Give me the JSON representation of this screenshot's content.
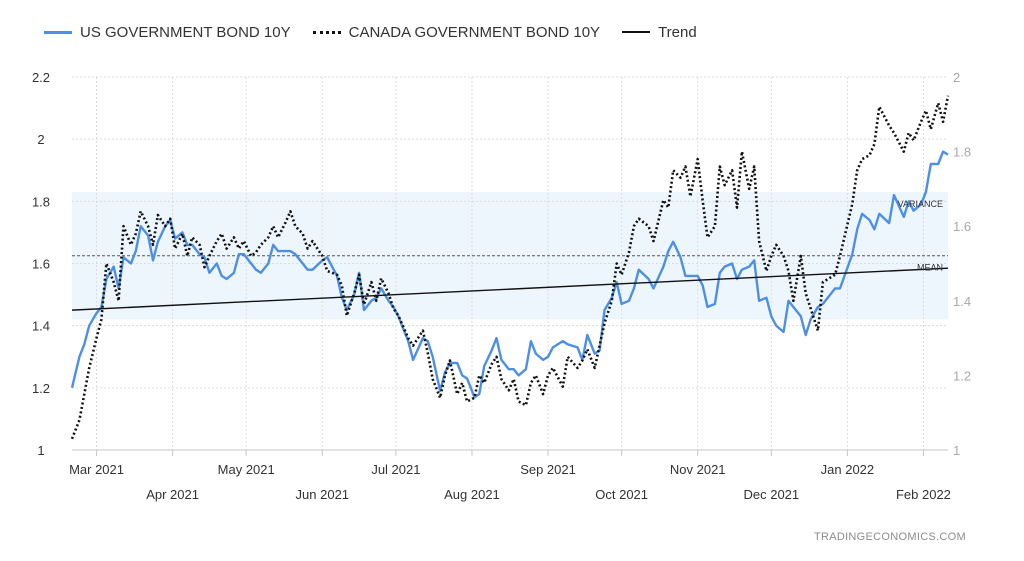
{
  "legend": {
    "us_label": "US GOVERNMENT BOND 10Y",
    "canada_label": "CANADA GOVERNMENT BOND 10Y",
    "trend_label": "Trend"
  },
  "watermark": "TRADINGECONOMICS.COM",
  "colors": {
    "us": "#4e8fe6",
    "canada": "#111111",
    "trend": "#111111",
    "band": "#eef6fd"
  },
  "chart_data": {
    "type": "line",
    "title": "",
    "xlabel": "",
    "ylabel": "",
    "x_range": [
      "2021-02-19",
      "2022-02-11"
    ],
    "y_left_lim": [
      1,
      2.2
    ],
    "y_left_ticks": [
      "1",
      "1.2",
      "1.4",
      "1.6",
      "1.8",
      "2",
      "2.2"
    ],
    "y_right_lim": [
      1,
      2
    ],
    "y_right_ticks": [
      "1",
      "1.2",
      "1.4",
      "1.6",
      "1.8",
      "2"
    ],
    "x_ticks_upper": [
      {
        "date": "2021-03-01",
        "label": "Mar 2021"
      },
      {
        "date": "2021-05-01",
        "label": "May 2021"
      },
      {
        "date": "2021-07-01",
        "label": "Jul 2021"
      },
      {
        "date": "2021-09-01",
        "label": "Sep 2021"
      },
      {
        "date": "2021-11-01",
        "label": "Nov 2021"
      },
      {
        "date": "2022-01-01",
        "label": "Jan 2022"
      }
    ],
    "x_ticks_lower": [
      {
        "date": "2021-04-01",
        "label": "Apr 2021"
      },
      {
        "date": "2021-06-01",
        "label": "Jun 2021"
      },
      {
        "date": "2021-08-01",
        "label": "Aug 2021"
      },
      {
        "date": "2021-10-01",
        "label": "Oct 2021"
      },
      {
        "date": "2021-12-01",
        "label": "Dec 2021"
      },
      {
        "date": "2022-02-01",
        "label": "Feb 2022"
      }
    ],
    "grid": true,
    "legend_position": "top-left",
    "variance_band": {
      "label": "VARIANCE",
      "low": 1.42,
      "high": 1.83,
      "axis": "left"
    },
    "mean_line": {
      "label": "MEAN",
      "value": 1.625,
      "axis": "left"
    },
    "trend_line": {
      "name": "Trend",
      "axis": "left",
      "start": [
        "2021-02-19",
        1.45
      ],
      "end": [
        "2022-02-11",
        1.585
      ]
    },
    "series": [
      {
        "name": "US GOVERNMENT BOND 10Y",
        "axis": "left",
        "style": "solid",
        "x": [
          "2021-02-19",
          "2021-02-22",
          "2021-02-24",
          "2021-02-26",
          "2021-03-01",
          "2021-03-03",
          "2021-03-05",
          "2021-03-08",
          "2021-03-10",
          "2021-03-12",
          "2021-03-15",
          "2021-03-17",
          "2021-03-19",
          "2021-03-22",
          "2021-03-24",
          "2021-03-26",
          "2021-03-29",
          "2021-03-31",
          "2021-04-02",
          "2021-04-05",
          "2021-04-07",
          "2021-04-09",
          "2021-04-12",
          "2021-04-14",
          "2021-04-16",
          "2021-04-19",
          "2021-04-21",
          "2021-04-23",
          "2021-04-26",
          "2021-04-28",
          "2021-04-30",
          "2021-05-03",
          "2021-05-05",
          "2021-05-07",
          "2021-05-10",
          "2021-05-12",
          "2021-05-14",
          "2021-05-17",
          "2021-05-19",
          "2021-05-21",
          "2021-05-24",
          "2021-05-26",
          "2021-05-28",
          "2021-06-01",
          "2021-06-03",
          "2021-06-07",
          "2021-06-09",
          "2021-06-11",
          "2021-06-14",
          "2021-06-16",
          "2021-06-18",
          "2021-06-21",
          "2021-06-23",
          "2021-06-25",
          "2021-06-28",
          "2021-06-30",
          "2021-07-02",
          "2021-07-06",
          "2021-07-08",
          "2021-07-12",
          "2021-07-14",
          "2021-07-16",
          "2021-07-19",
          "2021-07-21",
          "2021-07-23",
          "2021-07-26",
          "2021-07-28",
          "2021-07-30",
          "2021-08-02",
          "2021-08-04",
          "2021-08-06",
          "2021-08-09",
          "2021-08-11",
          "2021-08-13",
          "2021-08-16",
          "2021-08-18",
          "2021-08-20",
          "2021-08-23",
          "2021-08-25",
          "2021-08-27",
          "2021-08-30",
          "2021-09-01",
          "2021-09-03",
          "2021-09-07",
          "2021-09-09",
          "2021-09-13",
          "2021-09-15",
          "2021-09-17",
          "2021-09-20",
          "2021-09-22",
          "2021-09-24",
          "2021-09-27",
          "2021-09-29",
          "2021-10-01",
          "2021-10-04",
          "2021-10-06",
          "2021-10-08",
          "2021-10-12",
          "2021-10-14",
          "2021-10-18",
          "2021-10-20",
          "2021-10-22",
          "2021-10-25",
          "2021-10-27",
          "2021-10-29",
          "2021-11-01",
          "2021-11-03",
          "2021-11-05",
          "2021-11-08",
          "2021-11-10",
          "2021-11-12",
          "2021-11-15",
          "2021-11-17",
          "2021-11-19",
          "2021-11-22",
          "2021-11-24",
          "2021-11-26",
          "2021-11-29",
          "2021-12-01",
          "2021-12-03",
          "2021-12-06",
          "2021-12-08",
          "2021-12-10",
          "2021-12-13",
          "2021-12-15",
          "2021-12-17",
          "2021-12-20",
          "2021-12-22",
          "2021-12-27",
          "2021-12-29",
          "2022-01-03",
          "2022-01-05",
          "2022-01-07",
          "2022-01-10",
          "2022-01-12",
          "2022-01-14",
          "2022-01-18",
          "2022-01-20",
          "2022-01-24",
          "2022-01-26",
          "2022-01-28",
          "2022-01-31",
          "2022-02-02",
          "2022-02-04",
          "2022-02-07",
          "2022-02-09",
          "2022-02-11"
        ],
        "values": [
          1.2,
          1.3,
          1.34,
          1.4,
          1.44,
          1.46,
          1.55,
          1.59,
          1.52,
          1.62,
          1.6,
          1.64,
          1.72,
          1.69,
          1.61,
          1.67,
          1.72,
          1.74,
          1.68,
          1.7,
          1.66,
          1.66,
          1.63,
          1.62,
          1.57,
          1.6,
          1.56,
          1.55,
          1.57,
          1.63,
          1.63,
          1.6,
          1.58,
          1.57,
          1.6,
          1.66,
          1.64,
          1.64,
          1.64,
          1.63,
          1.6,
          1.58,
          1.58,
          1.61,
          1.62,
          1.56,
          1.49,
          1.45,
          1.5,
          1.57,
          1.45,
          1.48,
          1.49,
          1.52,
          1.48,
          1.46,
          1.43,
          1.35,
          1.29,
          1.36,
          1.35,
          1.3,
          1.19,
          1.25,
          1.28,
          1.28,
          1.24,
          1.23,
          1.17,
          1.18,
          1.27,
          1.32,
          1.36,
          1.29,
          1.26,
          1.26,
          1.24,
          1.26,
          1.35,
          1.31,
          1.29,
          1.3,
          1.33,
          1.35,
          1.34,
          1.33,
          1.29,
          1.37,
          1.31,
          1.32,
          1.45,
          1.49,
          1.54,
          1.47,
          1.48,
          1.52,
          1.58,
          1.55,
          1.52,
          1.59,
          1.64,
          1.67,
          1.62,
          1.56,
          1.56,
          1.56,
          1.53,
          1.46,
          1.47,
          1.57,
          1.59,
          1.6,
          1.55,
          1.58,
          1.59,
          1.61,
          1.48,
          1.49,
          1.43,
          1.4,
          1.38,
          1.48,
          1.46,
          1.43,
          1.37,
          1.42,
          1.46,
          1.47,
          1.52,
          1.52,
          1.63,
          1.71,
          1.76,
          1.74,
          1.71,
          1.76,
          1.73,
          1.82,
          1.75,
          1.8,
          1.77,
          1.79,
          1.83,
          1.92,
          1.92,
          1.96,
          1.95
        ]
      },
      {
        "name": "CANADA GOVERNMENT BOND 10Y",
        "axis": "right",
        "style": "dotted",
        "x": [
          "2021-02-19",
          "2021-02-22",
          "2021-02-24",
          "2021-02-26",
          "2021-03-01",
          "2021-03-03",
          "2021-03-05",
          "2021-03-08",
          "2021-03-10",
          "2021-03-12",
          "2021-03-15",
          "2021-03-17",
          "2021-03-19",
          "2021-03-22",
          "2021-03-24",
          "2021-03-26",
          "2021-03-29",
          "2021-03-31",
          "2021-04-02",
          "2021-04-05",
          "2021-04-07",
          "2021-04-09",
          "2021-04-12",
          "2021-04-14",
          "2021-04-16",
          "2021-04-19",
          "2021-04-21",
          "2021-04-23",
          "2021-04-26",
          "2021-04-28",
          "2021-04-30",
          "2021-05-03",
          "2021-05-05",
          "2021-05-07",
          "2021-05-10",
          "2021-05-12",
          "2021-05-14",
          "2021-05-17",
          "2021-05-19",
          "2021-05-21",
          "2021-05-24",
          "2021-05-26",
          "2021-05-28",
          "2021-06-01",
          "2021-06-03",
          "2021-06-07",
          "2021-06-09",
          "2021-06-11",
          "2021-06-14",
          "2021-06-16",
          "2021-06-18",
          "2021-06-21",
          "2021-06-23",
          "2021-06-25",
          "2021-06-28",
          "2021-06-30",
          "2021-07-02",
          "2021-07-06",
          "2021-07-08",
          "2021-07-12",
          "2021-07-14",
          "2021-07-16",
          "2021-07-19",
          "2021-07-21",
          "2021-07-23",
          "2021-07-26",
          "2021-07-28",
          "2021-07-30",
          "2021-08-02",
          "2021-08-04",
          "2021-08-06",
          "2021-08-09",
          "2021-08-11",
          "2021-08-13",
          "2021-08-16",
          "2021-08-18",
          "2021-08-20",
          "2021-08-23",
          "2021-08-25",
          "2021-08-27",
          "2021-08-30",
          "2021-09-01",
          "2021-09-03",
          "2021-09-07",
          "2021-09-09",
          "2021-09-13",
          "2021-09-15",
          "2021-09-17",
          "2021-09-20",
          "2021-09-22",
          "2021-09-24",
          "2021-09-27",
          "2021-09-29",
          "2021-10-01",
          "2021-10-04",
          "2021-10-06",
          "2021-10-08",
          "2021-10-12",
          "2021-10-14",
          "2021-10-18",
          "2021-10-20",
          "2021-10-22",
          "2021-10-25",
          "2021-10-27",
          "2021-10-29",
          "2021-11-01",
          "2021-11-03",
          "2021-11-05",
          "2021-11-08",
          "2021-11-10",
          "2021-11-12",
          "2021-11-15",
          "2021-11-17",
          "2021-11-19",
          "2021-11-22",
          "2021-11-24",
          "2021-11-26",
          "2021-11-29",
          "2021-12-01",
          "2021-12-03",
          "2021-12-06",
          "2021-12-08",
          "2021-12-10",
          "2021-12-13",
          "2021-12-15",
          "2021-12-17",
          "2021-12-20",
          "2021-12-22",
          "2021-12-27",
          "2021-12-29",
          "2022-01-03",
          "2022-01-05",
          "2022-01-07",
          "2022-01-10",
          "2022-01-12",
          "2022-01-14",
          "2022-01-18",
          "2022-01-20",
          "2022-01-24",
          "2022-01-26",
          "2022-01-28",
          "2022-01-31",
          "2022-02-02",
          "2022-02-04",
          "2022-02-07",
          "2022-02-09",
          "2022-02-11"
        ],
        "values": [
          1.03,
          1.08,
          1.15,
          1.22,
          1.3,
          1.35,
          1.5,
          1.45,
          1.4,
          1.6,
          1.55,
          1.58,
          1.64,
          1.6,
          1.55,
          1.63,
          1.6,
          1.62,
          1.54,
          1.58,
          1.52,
          1.57,
          1.55,
          1.49,
          1.52,
          1.56,
          1.58,
          1.54,
          1.57,
          1.54,
          1.56,
          1.52,
          1.53,
          1.55,
          1.57,
          1.6,
          1.57,
          1.61,
          1.64,
          1.6,
          1.58,
          1.54,
          1.56,
          1.52,
          1.48,
          1.47,
          1.44,
          1.36,
          1.42,
          1.47,
          1.39,
          1.45,
          1.4,
          1.46,
          1.42,
          1.38,
          1.36,
          1.3,
          1.28,
          1.32,
          1.26,
          1.19,
          1.14,
          1.2,
          1.24,
          1.15,
          1.18,
          1.13,
          1.14,
          1.2,
          1.18,
          1.23,
          1.25,
          1.19,
          1.16,
          1.19,
          1.13,
          1.12,
          1.18,
          1.2,
          1.15,
          1.2,
          1.22,
          1.17,
          1.25,
          1.22,
          1.24,
          1.27,
          1.22,
          1.28,
          1.34,
          1.4,
          1.5,
          1.47,
          1.53,
          1.6,
          1.62,
          1.6,
          1.56,
          1.67,
          1.65,
          1.75,
          1.73,
          1.76,
          1.68,
          1.78,
          1.67,
          1.57,
          1.6,
          1.76,
          1.71,
          1.75,
          1.65,
          1.8,
          1.7,
          1.76,
          1.56,
          1.48,
          1.52,
          1.55,
          1.52,
          1.48,
          1.4,
          1.52,
          1.42,
          1.38,
          1.32,
          1.45,
          1.47,
          1.52,
          1.66,
          1.75,
          1.78,
          1.79,
          1.82,
          1.92,
          1.87,
          1.85,
          1.8,
          1.85,
          1.83,
          1.88,
          1.91,
          1.86,
          1.93,
          1.88,
          1.95
        ]
      }
    ]
  }
}
